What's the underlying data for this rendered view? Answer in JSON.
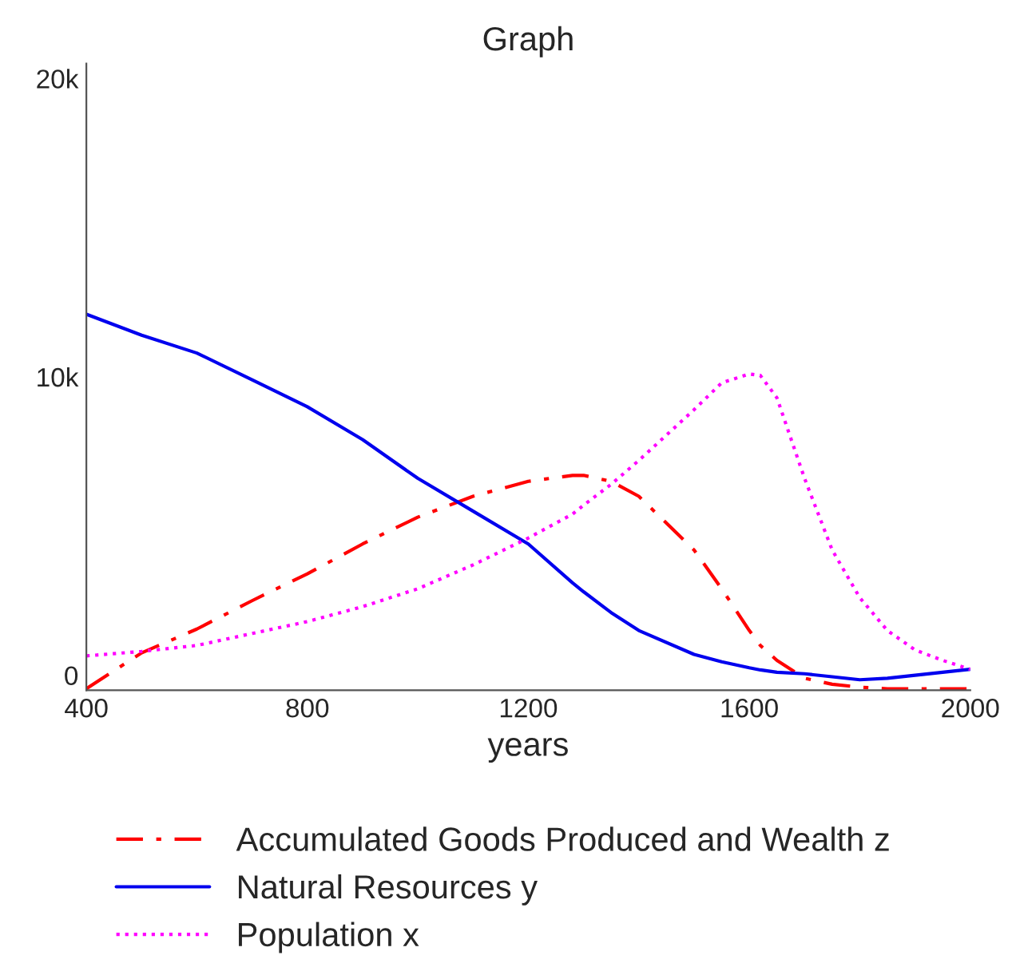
{
  "chart_data": {
    "type": "line",
    "title": "Graph",
    "xlabel": "years",
    "x": [
      400,
      500,
      600,
      700,
      800,
      900,
      1000,
      1100,
      1200,
      1280,
      1300,
      1350,
      1400,
      1500,
      1550,
      1600,
      1620,
      1650,
      1700,
      1750,
      1800,
      1850,
      1900,
      1950,
      2000
    ],
    "series": [
      {
        "name": "Accumulated Goods Produced and Wealth z",
        "color": "#ff0000",
        "line_style": "dashdot",
        "values": [
          -450,
          750,
          1550,
          2500,
          3400,
          4400,
          5300,
          6000,
          6500,
          6700,
          6700,
          6500,
          6000,
          4200,
          2900,
          1500,
          1000,
          500,
          -100,
          -300,
          -400,
          -450,
          -450,
          -450,
          -450
        ]
      },
      {
        "name": "Natural Resources y",
        "color": "#0000ee",
        "line_style": "solid",
        "values": [
          12100,
          11400,
          10800,
          9900,
          9000,
          7900,
          6600,
          5500,
          4400,
          3100,
          2800,
          2100,
          1500,
          700,
          450,
          250,
          180,
          100,
          50,
          -50,
          -150,
          -100,
          0,
          100,
          200
        ]
      },
      {
        "name": "Population x",
        "color": "#ff00ff",
        "line_style": "dotted",
        "values": [
          650,
          800,
          1000,
          1400,
          1800,
          2300,
          2900,
          3700,
          4600,
          5400,
          5700,
          6400,
          7200,
          8900,
          9800,
          10100,
          10050,
          9300,
          6600,
          4200,
          2600,
          1500,
          850,
          500,
          200
        ]
      }
    ],
    "xlim": [
      400,
      2000
    ],
    "ylim": [
      -500,
      20500
    ],
    "xticks": [
      400,
      800,
      1200,
      1600,
      2000
    ],
    "yticks": [
      {
        "value": 0,
        "label": "0"
      },
      {
        "value": 10000,
        "label": "10k"
      },
      {
        "value": 20000,
        "label": "20k"
      }
    ],
    "grid": false,
    "legend": "bottom"
  }
}
